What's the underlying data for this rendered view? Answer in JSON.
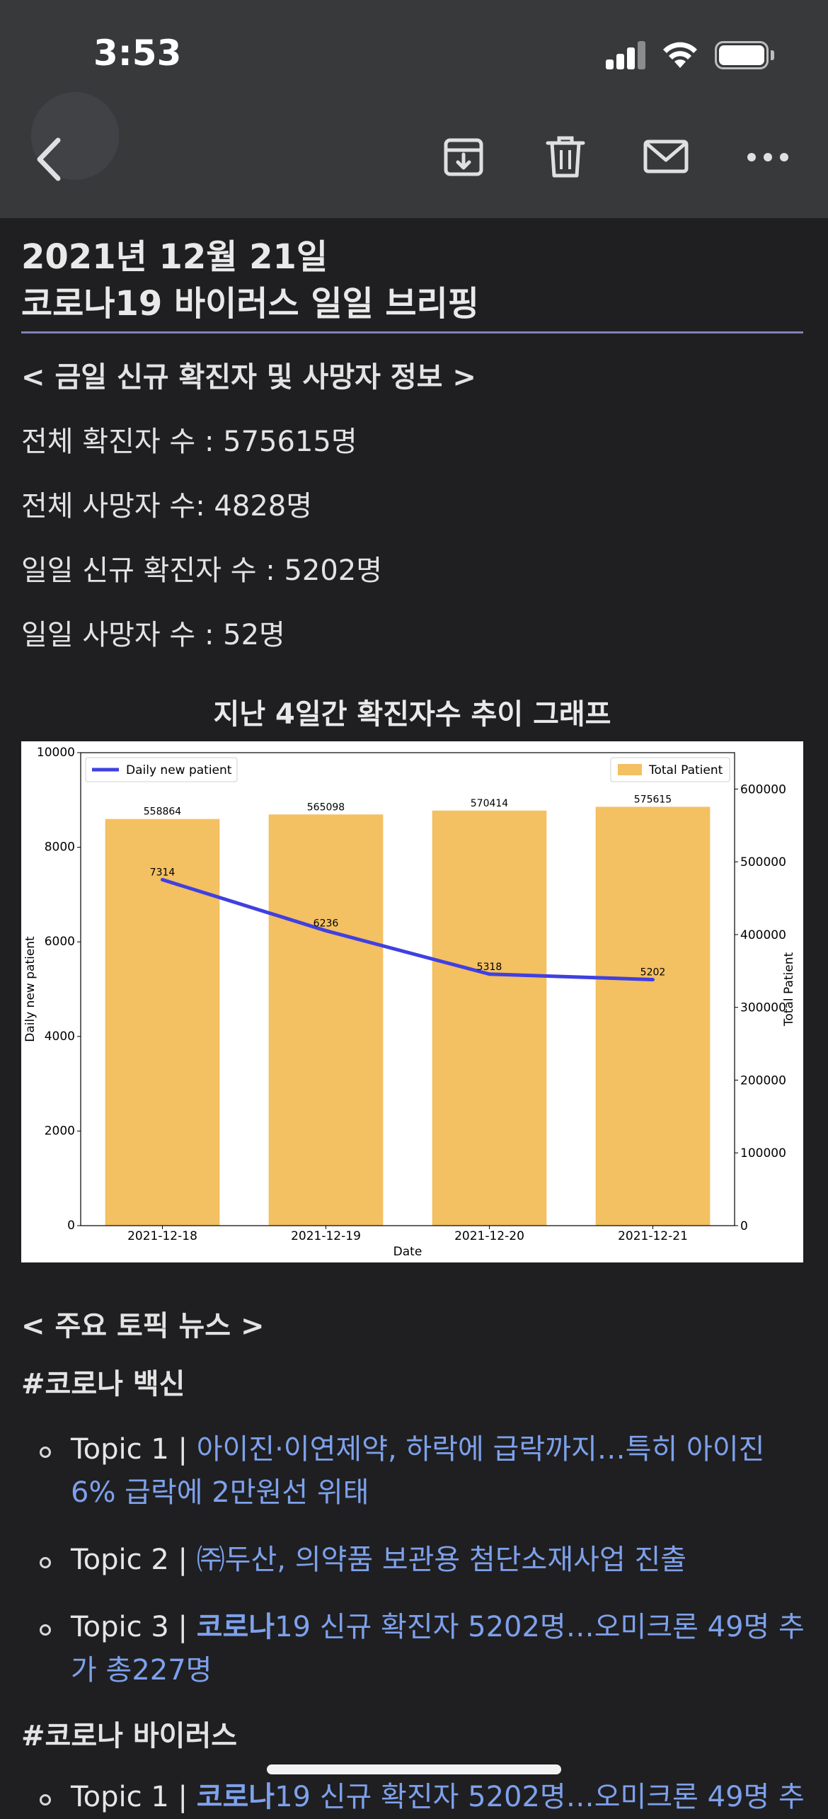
{
  "status_bar": {
    "time": "3:53"
  },
  "toolbar": {
    "icons": [
      "back-chevron-icon",
      "archive-icon",
      "trash-icon",
      "mail-icon",
      "more-icon"
    ]
  },
  "email": {
    "title_line1": "2021년 12월 21일",
    "title_line2": "코로나19 바이러스 일일 브리핑",
    "section_info": "< 금일 신규 확진자 및 사망자 정보 >",
    "stats": [
      "전체 확진자 수 : 575615명",
      "전체 사망자 수: 4828명",
      "일일 신규 확진자 수 : 5202명",
      "일일 사망자 수 : 52명"
    ],
    "chart_heading": "지난 4일간 확진자수 추이 그래프",
    "news_heading": "< 주요 토픽 뉴스 >",
    "groups": [
      {
        "tag": "#코로나 백신",
        "topics": [
          {
            "prefix": "Topic 1 | ",
            "bold": "",
            "text": "아이진·이연제약, 하락에 급락까지…특히 아이진 6% 급락에 2만원선 위태"
          },
          {
            "prefix": "Topic 2 | ",
            "bold": "",
            "text": "㈜두산, 의약품 보관용 첨단소재사업 진출"
          },
          {
            "prefix": "Topic 3 | ",
            "bold": "코로나",
            "text": "19 신규 확진자 5202명…오미크론 49명 추가 총227명"
          }
        ]
      },
      {
        "tag": "#코로나 바이러스",
        "topics": [
          {
            "prefix": "Topic 1 | ",
            "bold": "코로나",
            "text": "19 신규 확진자 5202명…오미크론 49명 추"
          }
        ]
      }
    ]
  },
  "chart_data": {
    "type": "bar",
    "categories": [
      "2021-12-18",
      "2021-12-19",
      "2021-12-20",
      "2021-12-21"
    ],
    "series": [
      {
        "name": "Total Patient",
        "kind": "bar",
        "axis": "right",
        "values": [
          558864,
          565098,
          570414,
          575615
        ],
        "color": "#f3c062"
      },
      {
        "name": "Daily new patient",
        "kind": "line",
        "axis": "left",
        "values": [
          7314,
          6236,
          5318,
          5202
        ],
        "color": "#4040e0"
      }
    ],
    "xlabel": "Date",
    "ylabel": "Daily new patient",
    "y2label": "Total Patient",
    "ylim": [
      0,
      10000
    ],
    "y2lim": [
      0,
      650000
    ],
    "yticks": [
      "0",
      "2000",
      "4000",
      "6000",
      "8000",
      "10000"
    ],
    "y2ticks": [
      "0",
      "100000",
      "200000",
      "300000",
      "400000",
      "500000",
      "600000"
    ],
    "legend": {
      "line": "top-left",
      "bar": "top-right"
    },
    "grid": false
  }
}
